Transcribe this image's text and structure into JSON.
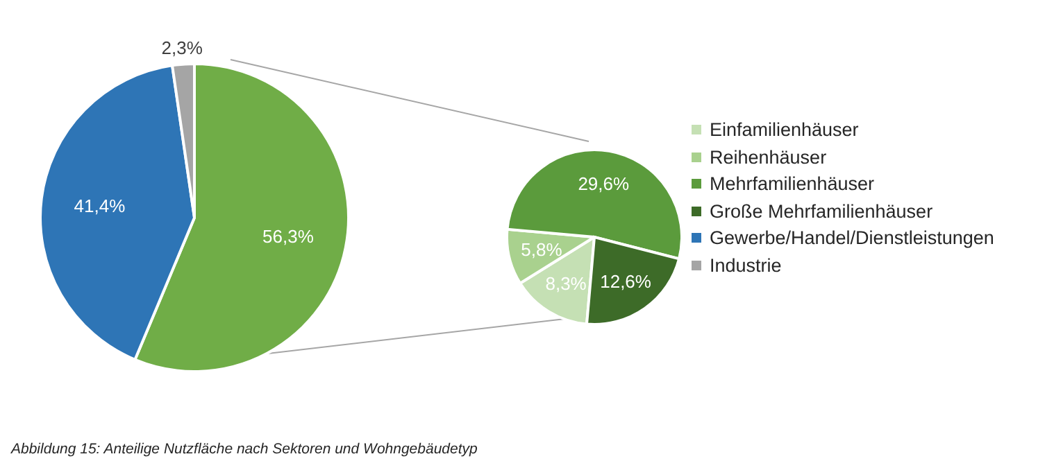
{
  "chart_data": [
    {
      "type": "pie",
      "categories": [
        null,
        "Gewerbe/Handel/Dienstleistungen",
        "Industrie"
      ],
      "values": [
        56.3,
        41.4,
        2.3
      ],
      "colors": [
        "#70ad47",
        "#2e75b6",
        "#a5a5a5"
      ],
      "value_labels": [
        "56,3%",
        "41,4%",
        "2,3%"
      ],
      "legend": "right",
      "annotations": [
        "Abbildung 15: Anteilige Nutzfläche nach Sektoren und Wohngebäudetyp"
      ]
    },
    {
      "type": "pie",
      "categories": [
        "Einfamilienhäuser",
        "Reihenhäuser",
        "Mehrfamilienhäuser",
        "Große Mehrfamilienhäuser"
      ],
      "values": [
        8.3,
        5.8,
        29.6,
        12.6
      ],
      "colors": [
        "#c5e0b4",
        "#a9d18e",
        "#5b9b3c",
        "#3d6b28"
      ],
      "value_labels": [
        "8,3%",
        "5,8%",
        "29,6%",
        "12,6%"
      ],
      "legend": "right"
    }
  ]
}
